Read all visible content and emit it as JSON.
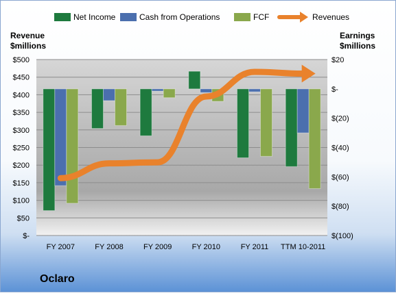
{
  "company": "Oclaro",
  "chart_data": {
    "type": "bar",
    "categories": [
      "FY 2007",
      "FY 2008",
      "FY 2009",
      "FY 2010",
      "FY 2011",
      "TTM 10-2011"
    ],
    "series": [
      {
        "name": "Net Income",
        "axis": "right",
        "color": "#1e7a3e",
        "values": [
          -83,
          -27,
          -32,
          12,
          -47,
          -53
        ]
      },
      {
        "name": "Cash from Operations",
        "axis": "right",
        "color": "#4b6fae",
        "values": [
          -66,
          -8,
          -1.5,
          -2.5,
          -2,
          -30
        ]
      },
      {
        "name": "FCF",
        "axis": "right",
        "color": "#8aa84c",
        "values": [
          -78,
          -25,
          -6,
          -8.5,
          -46,
          -68
        ]
      },
      {
        "name": "Revenues",
        "axis": "left",
        "type": "line",
        "color": "#e9822c",
        "values": [
          163,
          205,
          208,
          395,
          465,
          460
        ]
      }
    ],
    "yaxis_left": {
      "label_lines": [
        "Revenue",
        "$millions"
      ],
      "range": [
        0,
        500
      ],
      "ticks": [
        0,
        50,
        100,
        150,
        200,
        250,
        300,
        350,
        400,
        450,
        500
      ],
      "tick_labels": [
        "$-",
        "$50",
        "$100",
        "$150",
        "$200",
        "$250",
        "$300",
        "$350",
        "$400",
        "$450",
        "$500"
      ]
    },
    "yaxis_right": {
      "label_lines": [
        "Earnings",
        "$millions"
      ],
      "range": [
        -100,
        20
      ],
      "ticks": [
        20,
        0,
        -20,
        -40,
        -60,
        -80,
        -100
      ],
      "tick_labels": [
        "$20",
        "$-",
        "$(20)",
        "$(40)",
        "$(60)",
        "$(80)",
        "$(100)"
      ]
    },
    "legend_position": "top"
  }
}
